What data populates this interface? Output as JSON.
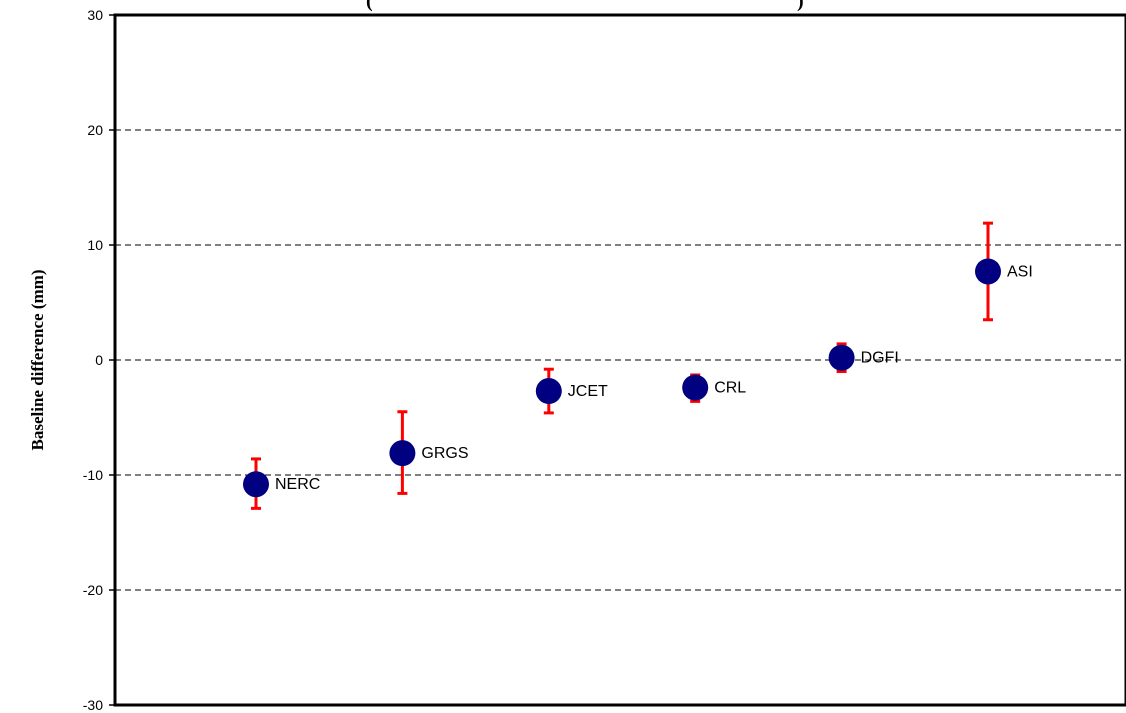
{
  "chart_data": {
    "type": "scatter",
    "title": "(",
    "title_right": ")",
    "ylabel": "Baseline difference (mm)",
    "xlabel": "",
    "ylim": [
      -30,
      30
    ],
    "yticks": [
      -30,
      -20,
      -10,
      0,
      10,
      20,
      30
    ],
    "ytick_labels": [
      "-30",
      "-20",
      "-10",
      "0",
      "10",
      "20",
      "30"
    ],
    "grid": "dashed horizontal",
    "marker_color": "#000080",
    "errorbar_color": "#ff0000",
    "points": [
      {
        "label": "NERC",
        "y": -10.8,
        "err_low": -12.9,
        "err_high": -8.6
      },
      {
        "label": "GRGS",
        "y": -8.1,
        "err_low": -11.6,
        "err_high": -4.5
      },
      {
        "label": "JCET",
        "y": -2.7,
        "err_low": -4.6,
        "err_high": -0.8
      },
      {
        "label": "CRL",
        "y": -2.4,
        "err_low": -3.6,
        "err_high": -1.3
      },
      {
        "label": "DGFI",
        "y": 0.2,
        "err_low": -1.0,
        "err_high": 1.4
      },
      {
        "label": "ASI",
        "y": 7.7,
        "err_low": 3.5,
        "err_high": 11.9
      }
    ]
  }
}
